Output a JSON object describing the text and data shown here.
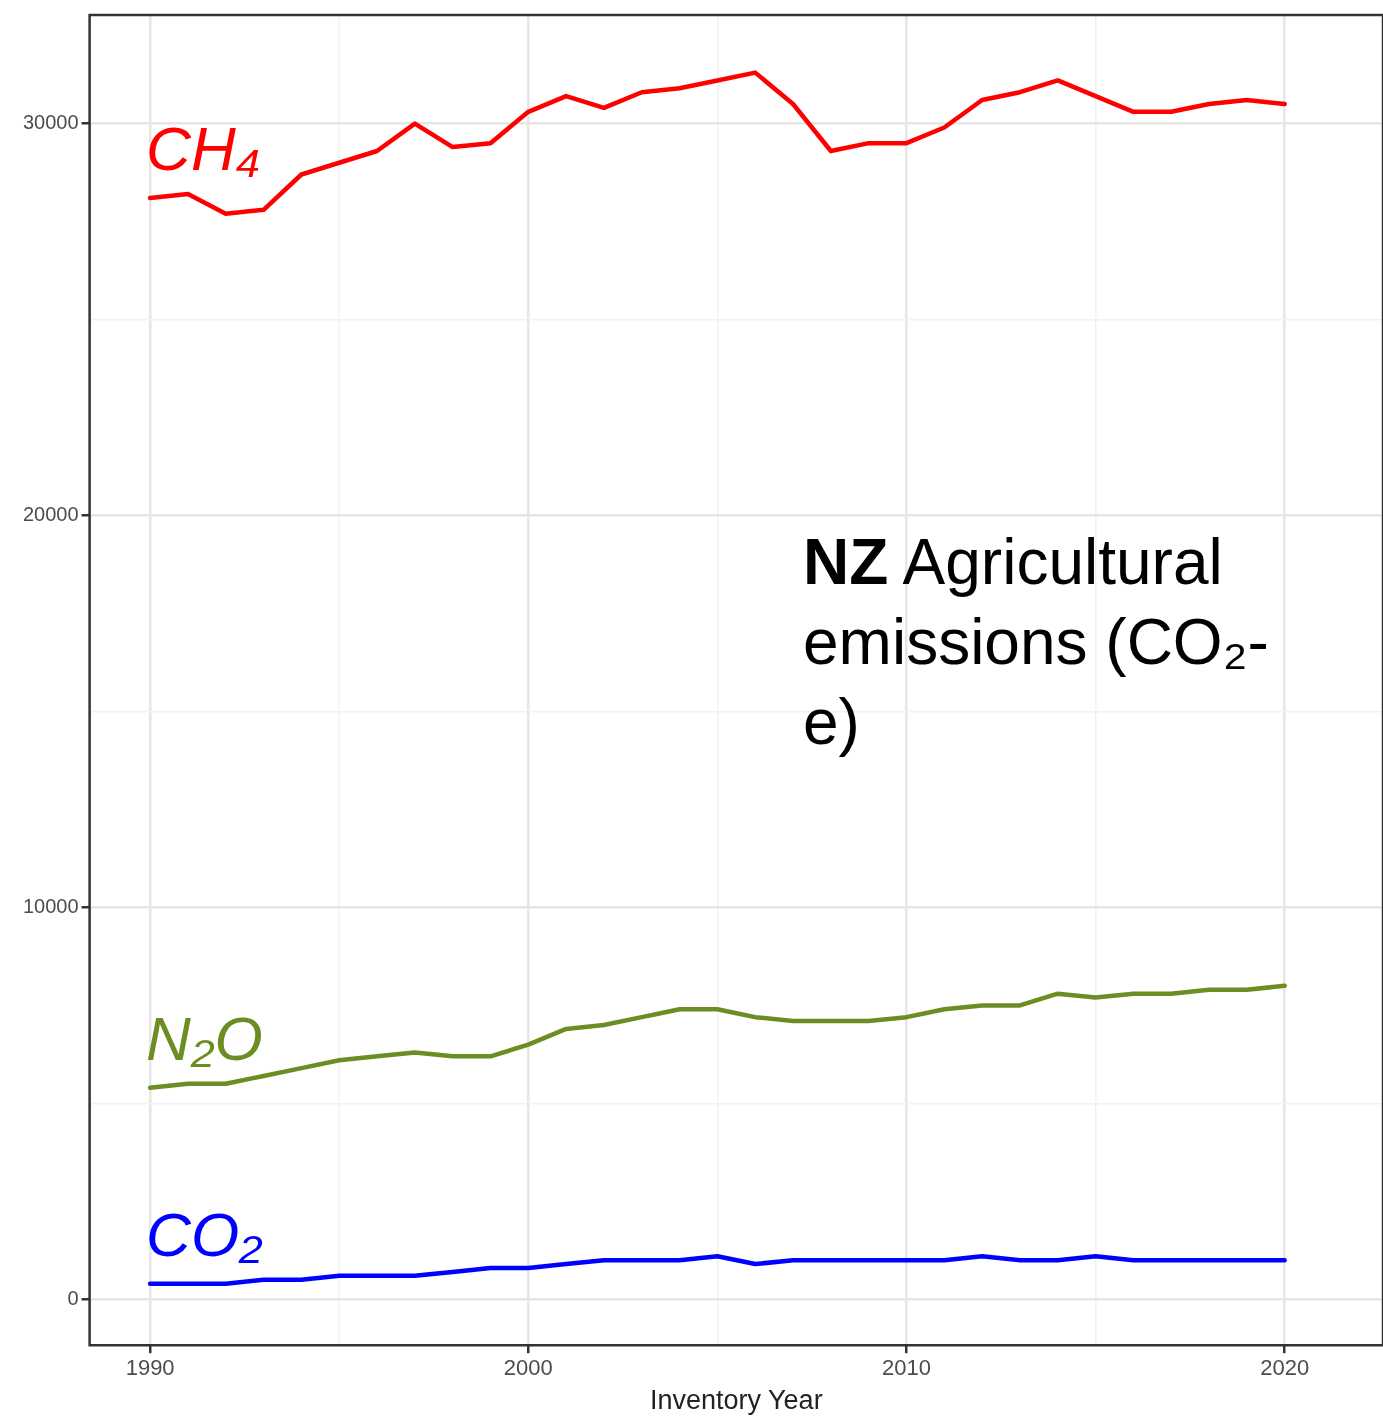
{
  "chart_data": {
    "type": "line",
    "xlabel": "Inventory Year",
    "annotations": [
      "NZ Agricultural emissions (CO₂-e)"
    ],
    "x": [
      1990,
      1991,
      1992,
      1993,
      1994,
      1995,
      1996,
      1997,
      1998,
      1999,
      2000,
      2001,
      2002,
      2003,
      2004,
      2005,
      2006,
      2007,
      2008,
      2009,
      2010,
      2011,
      2012,
      2013,
      2014,
      2015,
      2016,
      2017,
      2018,
      2019,
      2020
    ],
    "series": [
      {
        "name": "CH₄",
        "color": "#ff0000",
        "values": [
          28100,
          28200,
          27700,
          27800,
          28700,
          29000,
          29300,
          30000,
          29400,
          29500,
          30300,
          30700,
          30400,
          30800,
          30900,
          31100,
          31300,
          30500,
          29300,
          29500,
          29500,
          29900,
          30600,
          30800,
          31100,
          30700,
          30300,
          30300,
          30500,
          30600,
          30500
        ]
      },
      {
        "name": "N₂O",
        "color": "#6b8e23",
        "values": [
          5400,
          5500,
          5500,
          5700,
          5900,
          6100,
          6200,
          6300,
          6200,
          6200,
          6500,
          6900,
          7000,
          7200,
          7400,
          7400,
          7200,
          7100,
          7100,
          7100,
          7200,
          7400,
          7500,
          7500,
          7800,
          7700,
          7800,
          7800,
          7900,
          7900,
          8000
        ]
      },
      {
        "name": "CO₂",
        "color": "#0000ff",
        "values": [
          400,
          400,
          400,
          500,
          500,
          600,
          600,
          600,
          700,
          800,
          800,
          900,
          1000,
          1000,
          1000,
          1100,
          900,
          1000,
          1000,
          1000,
          1000,
          1000,
          1100,
          1000,
          1000,
          1100,
          1000,
          1000,
          1000,
          1000,
          1000
        ]
      }
    ],
    "xlim": [
      1988.4,
      2022.6
    ],
    "ylim": [
      -1170,
      32770
    ],
    "xticks": [
      1990,
      {
        "value": 1995,
        "label": null
      },
      2000,
      {
        "value": 2005,
        "label": null
      },
      2010,
      {
        "value": 2015,
        "label": null
      },
      2020
    ],
    "yticks": [
      0,
      {
        "value": 5000,
        "label": null
      },
      10000,
      {
        "value": 15000,
        "label": null
      },
      20000,
      {
        "value": 25000,
        "label": null
      },
      30000
    ],
    "grid": true,
    "legend": false,
    "line_style": "solid",
    "marker": "none"
  }
}
